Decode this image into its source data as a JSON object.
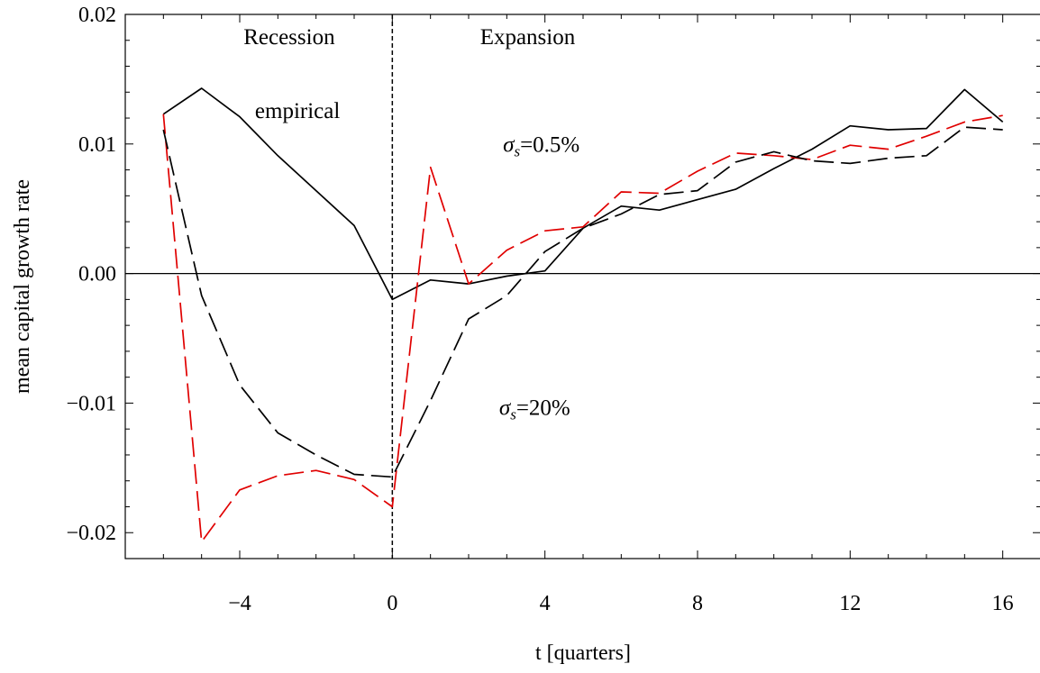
{
  "chart_data": {
    "type": "line",
    "xlabel": "t [quarters]",
    "ylabel": "mean capital growth rate",
    "xlim": [
      -7,
      17
    ],
    "ylim": [
      -0.022,
      0.02
    ],
    "xticks": [
      -4,
      0,
      4,
      8,
      12,
      16
    ],
    "xtick_labels": [
      "−4",
      "0",
      "4",
      "8",
      "12",
      "16"
    ],
    "yticks": [
      -0.02,
      -0.01,
      0.0,
      0.01,
      0.02
    ],
    "ytick_labels": [
      "−0.02",
      "−0.01",
      "0.00",
      "0.01",
      "0.02"
    ],
    "grid": false,
    "series": [
      {
        "name": "empirical",
        "color": "#000000",
        "style": "solid",
        "x": [
          -6,
          -5,
          -4,
          -3,
          -2,
          -1,
          0,
          1,
          2,
          3,
          4,
          5,
          6,
          7,
          8,
          9,
          10,
          11,
          12,
          13,
          14,
          15,
          16
        ],
        "values": [
          0.0123,
          0.0143,
          0.0121,
          0.0091,
          0.0064,
          0.0037,
          -0.002,
          -0.0005,
          -0.0008,
          -0.0002,
          0.0002,
          0.0035,
          0.0052,
          0.0049,
          0.0057,
          0.0065,
          0.0081,
          0.0096,
          0.0114,
          0.0111,
          0.0112,
          0.0142,
          0.0117
        ]
      },
      {
        "name": "σs=0.5%",
        "color": "#e00000",
        "style": "dashed",
        "x": [
          -6,
          -5,
          -4,
          -3,
          -2,
          -1,
          0,
          1,
          2,
          3,
          4,
          5,
          6,
          7,
          8,
          9,
          10,
          11,
          12,
          13,
          14,
          15,
          16
        ],
        "values": [
          0.0123,
          -0.0207,
          -0.0167,
          -0.0156,
          -0.0152,
          -0.0159,
          -0.018,
          0.0082,
          -0.0008,
          0.0018,
          0.0033,
          0.0036,
          0.0063,
          0.0062,
          0.0079,
          0.0093,
          0.0091,
          0.0088,
          0.0099,
          0.0096,
          0.0106,
          0.0117,
          0.0122
        ]
      },
      {
        "name": "σs=20%",
        "color": "#000000",
        "style": "dashed",
        "x": [
          -6,
          -5,
          -4,
          -3,
          -2,
          -1,
          0,
          1,
          2,
          3,
          4,
          5,
          6,
          7,
          8,
          9,
          10,
          11,
          12,
          13,
          14,
          15,
          16
        ],
        "values": [
          0.0111,
          -0.0017,
          -0.0086,
          -0.0123,
          -0.014,
          -0.0155,
          -0.0157,
          -0.0098,
          -0.0035,
          -0.0017,
          0.0017,
          0.0035,
          0.0046,
          0.0061,
          0.0064,
          0.0086,
          0.0094,
          0.0087,
          0.0085,
          0.0089,
          0.0091,
          0.0113,
          0.0111
        ]
      }
    ],
    "vertical_line": {
      "x": 0,
      "style": "dashed"
    },
    "horizontal_line": {
      "y": 0,
      "style": "solid"
    },
    "annotations": [
      {
        "text": "Recession",
        "x": -3.9,
        "y": 0.0177
      },
      {
        "text": "Expansion",
        "x": 2.3,
        "y": 0.0177
      },
      {
        "text": "empirical",
        "x": -3.6,
        "y": 0.012
      },
      {
        "symbol": "σ",
        "sub": "s",
        "rest": "=0.5%",
        "x": 2.9,
        "y": 0.0094
      },
      {
        "symbol": "σ",
        "sub": "s",
        "rest": "=20%",
        "x": 2.8,
        "y": -0.0109
      }
    ]
  }
}
